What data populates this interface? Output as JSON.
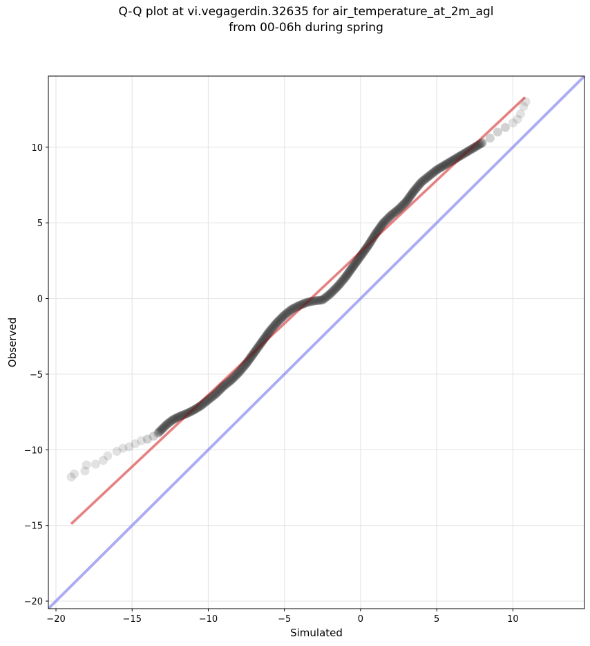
{
  "chart_data": {
    "type": "scatter",
    "title_lines": [
      "Q-Q plot at vi.vegagerdin.32635 for air_temperature_at_2m_agl",
      "from 00-06h during spring"
    ],
    "xlabel": "Simulated",
    "ylabel": "Observed",
    "xlim": [
      -20.5,
      14.7
    ],
    "ylim": [
      -20.5,
      14.7
    ],
    "x_ticks": [
      -20,
      -15,
      -10,
      -5,
      0,
      5,
      10
    ],
    "y_ticks": [
      -20,
      -15,
      -10,
      -5,
      0,
      5,
      10
    ],
    "x_tick_labels": [
      "−20",
      "−15",
      "−10",
      "−5",
      "0",
      "5",
      "10"
    ],
    "y_tick_labels": [
      "−20",
      "−15",
      "−10",
      "−5",
      "0",
      "5",
      "10"
    ],
    "grid": true,
    "series": [
      {
        "kind": "points",
        "color": "#333333",
        "points": [
          [
            -19.0,
            -11.8
          ],
          [
            -18.8,
            -11.6
          ],
          [
            -18.1,
            -11.4
          ],
          [
            -18.0,
            -11.0
          ],
          [
            -17.4,
            -10.95
          ],
          [
            -16.9,
            -10.7
          ],
          [
            -16.6,
            -10.4
          ],
          [
            -16.0,
            -10.1
          ],
          [
            -15.6,
            -9.9
          ],
          [
            -15.2,
            -9.8
          ],
          [
            -14.8,
            -9.6
          ],
          [
            -14.4,
            -9.4
          ],
          [
            -14.0,
            -9.3
          ],
          [
            -13.6,
            -9.1
          ],
          [
            -13.3,
            -8.9
          ],
          [
            -13.0,
            -8.6
          ],
          [
            -12.7,
            -8.3
          ],
          [
            -12.3,
            -8.0
          ],
          [
            -11.9,
            -7.8
          ],
          [
            -11.4,
            -7.6
          ],
          [
            -11.0,
            -7.4
          ],
          [
            -10.5,
            -7.1
          ],
          [
            -10.0,
            -6.7
          ],
          [
            -9.5,
            -6.3
          ],
          [
            -9.0,
            -5.8
          ],
          [
            -8.5,
            -5.4
          ],
          [
            -8.0,
            -4.9
          ],
          [
            -7.5,
            -4.3
          ],
          [
            -7.0,
            -3.6
          ],
          [
            -6.5,
            -2.9
          ],
          [
            -6.0,
            -2.2
          ],
          [
            -5.5,
            -1.6
          ],
          [
            -5.0,
            -1.1
          ],
          [
            -4.5,
            -0.7
          ],
          [
            -4.0,
            -0.45
          ],
          [
            -3.5,
            -0.25
          ],
          [
            -3.0,
            -0.15
          ],
          [
            -2.5,
            -0.1
          ],
          [
            -2.0,
            0.3
          ],
          [
            -1.5,
            0.8
          ],
          [
            -1.0,
            1.4
          ],
          [
            -0.5,
            2.1
          ],
          [
            0.0,
            2.8
          ],
          [
            0.5,
            3.5
          ],
          [
            1.0,
            4.3
          ],
          [
            1.5,
            5.0
          ],
          [
            2.0,
            5.5
          ],
          [
            2.5,
            5.9
          ],
          [
            3.0,
            6.4
          ],
          [
            3.5,
            7.1
          ],
          [
            4.0,
            7.7
          ],
          [
            4.5,
            8.1
          ],
          [
            5.0,
            8.5
          ],
          [
            5.5,
            8.8
          ],
          [
            6.0,
            9.1
          ],
          [
            6.5,
            9.4
          ],
          [
            7.0,
            9.7
          ],
          [
            7.5,
            10.0
          ],
          [
            8.0,
            10.3
          ],
          [
            8.5,
            10.6
          ],
          [
            9.0,
            11.0
          ],
          [
            9.5,
            11.3
          ],
          [
            10.0,
            11.6
          ],
          [
            10.3,
            11.85
          ],
          [
            10.5,
            12.2
          ],
          [
            10.7,
            12.7
          ],
          [
            10.85,
            13.0
          ]
        ]
      },
      {
        "kind": "fit-line",
        "color": "#f08080",
        "points": [
          [
            -19.0,
            -14.9
          ],
          [
            10.8,
            13.3
          ]
        ]
      },
      {
        "kind": "identity-line",
        "color": "#8080f0",
        "points": [
          [
            -20.5,
            -20.5
          ],
          [
            14.7,
            14.7
          ]
        ]
      }
    ]
  }
}
